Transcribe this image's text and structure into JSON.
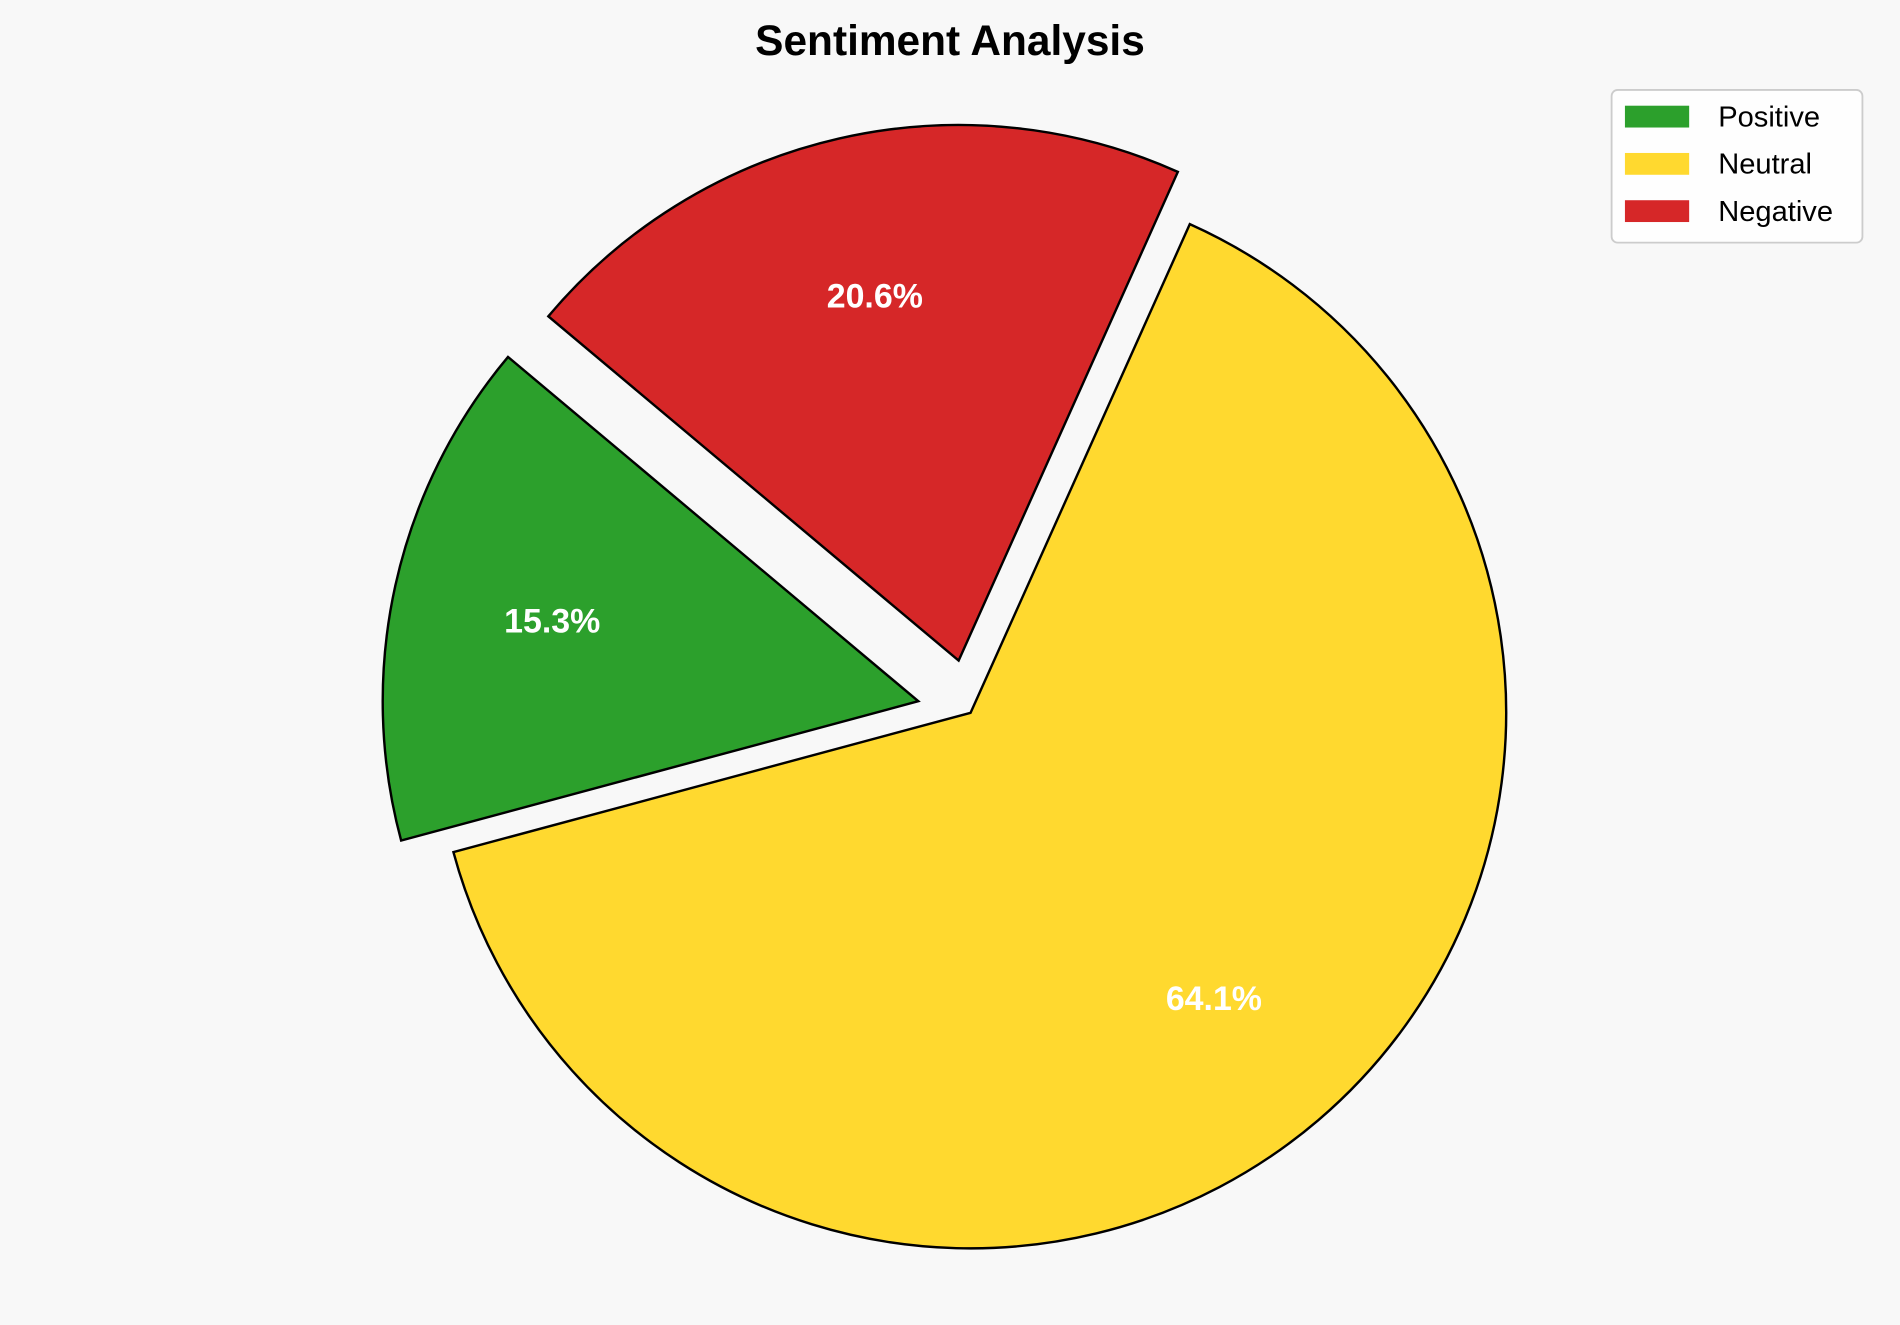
{
  "chart_data": {
    "type": "pie",
    "title": "Sentiment Analysis",
    "categories": [
      "Positive",
      "Neutral",
      "Negative"
    ],
    "values": [
      15.3,
      64.1,
      20.6
    ],
    "labels": [
      "15.3%",
      "64.1%",
      "20.6%"
    ],
    "colors": [
      "#2ca02c",
      "#ffd92f",
      "#d62728"
    ],
    "explode": [
      0.1,
      0,
      0.1
    ],
    "startangle": 140,
    "direction": "counterclockwise",
    "legend": {
      "placement": "upper-right",
      "entries": [
        "Positive",
        "Neutral",
        "Negative"
      ]
    },
    "background": "#f8f8f8",
    "edgecolor": "#000000"
  }
}
